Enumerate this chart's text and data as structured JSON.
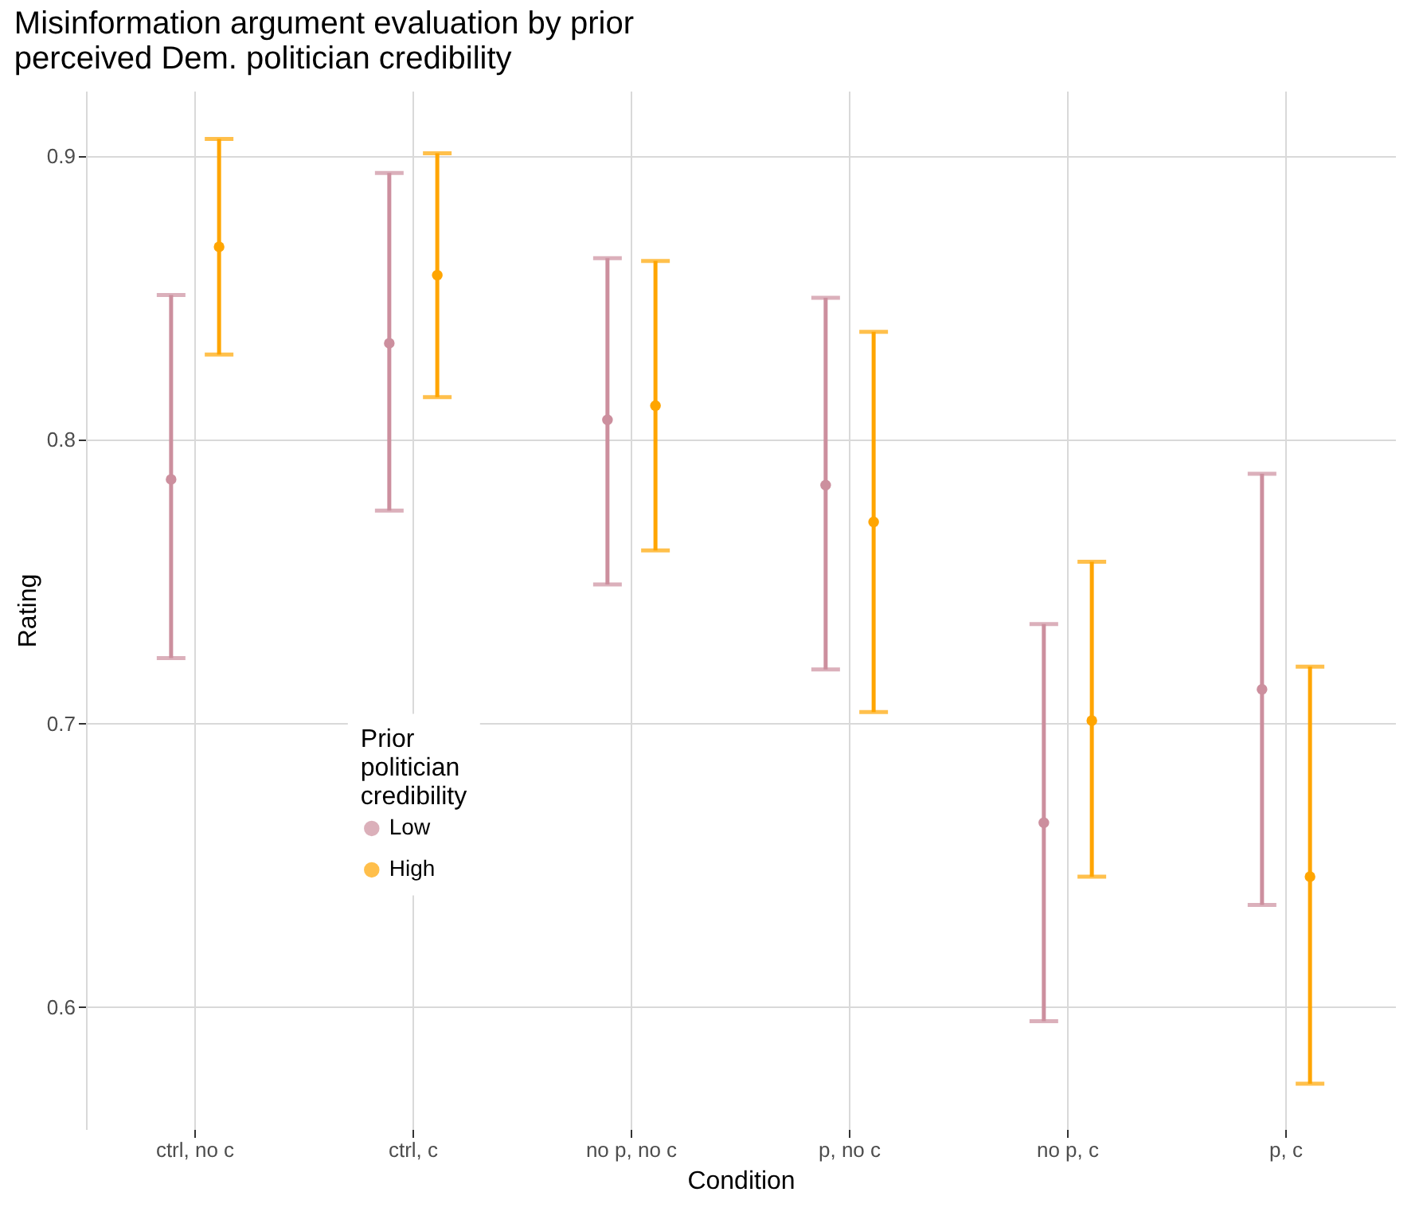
{
  "chart_data": {
    "type": "scatter",
    "title": "Misinformation argument evaluation by prior perceived Dem. politician credibility",
    "xlabel": "Condition",
    "ylabel": "Rating",
    "legend_title": "Prior politician credibility",
    "categories": [
      "ctrl, no c",
      "ctrl, c",
      "no p, no c",
      "p, no c",
      "no p, c",
      "p, c"
    ],
    "series": [
      {
        "name": "Low",
        "color": "#cc8f9e",
        "values": [
          0.786,
          0.834,
          0.807,
          0.784,
          0.665,
          0.712
        ],
        "errors": [
          [
            0.723,
            0.851
          ],
          [
            0.775,
            0.894
          ],
          [
            0.749,
            0.864
          ],
          [
            0.719,
            0.85
          ],
          [
            0.595,
            0.735
          ],
          [
            0.636,
            0.788
          ]
        ]
      },
      {
        "name": "High",
        "color": "#ffa500",
        "values": [
          0.868,
          0.858,
          0.812,
          0.771,
          0.701,
          0.646
        ],
        "errors": [
          [
            0.83,
            0.906
          ],
          [
            0.815,
            0.901
          ],
          [
            0.761,
            0.863
          ],
          [
            0.704,
            0.838
          ],
          [
            0.646,
            0.757
          ],
          [
            0.573,
            0.72
          ]
        ]
      }
    ],
    "ylim": [
      0.557,
      0.923
    ],
    "yticks": [
      0.6,
      0.7,
      0.8,
      0.9
    ],
    "grid": true,
    "legend": "bottom left",
    "marker": "circle"
  }
}
